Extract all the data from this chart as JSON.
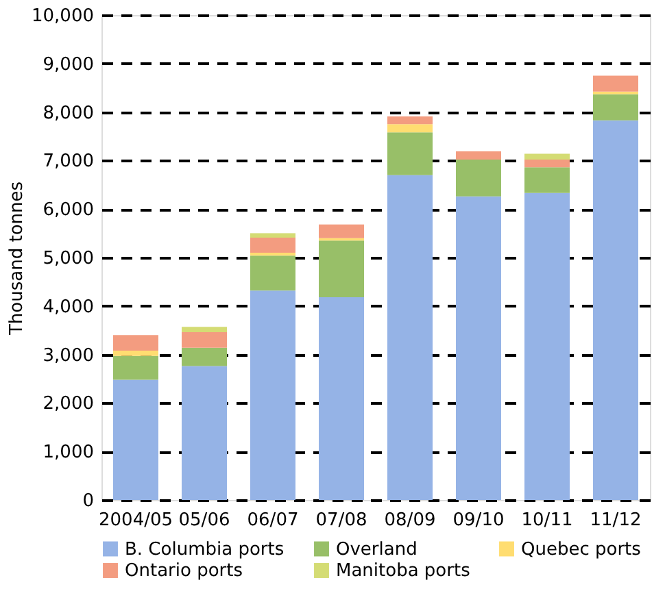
{
  "chart_data": {
    "type": "bar",
    "stacked": true,
    "ylabel": "Thousand tonnes",
    "categories": [
      "2004/05",
      "05/06",
      "06/07",
      "07/08",
      "08/09",
      "09/10",
      "10/11",
      "11/12"
    ],
    "series": [
      {
        "name": "B. Columbia ports",
        "color": "#95b3e6",
        "values": [
          2480,
          2760,
          4320,
          4180,
          6700,
          6260,
          6330,
          7830
        ]
      },
      {
        "name": "Overland",
        "color": "#98bf68",
        "values": [
          490,
          380,
          720,
          1170,
          880,
          760,
          530,
          540
        ]
      },
      {
        "name": "Quebec ports",
        "color": "#ffdd71",
        "values": [
          110,
          0,
          60,
          50,
          170,
          0,
          0,
          50
        ]
      },
      {
        "name": "Ontario ports",
        "color": "#f39c80",
        "values": [
          320,
          320,
          310,
          280,
          160,
          170,
          160,
          330
        ]
      },
      {
        "name": "Manitoba ports",
        "color": "#d4dc74",
        "values": [
          0,
          110,
          90,
          0,
          0,
          0,
          120,
          0
        ]
      }
    ],
    "ylim": [
      0,
      10000
    ],
    "yticks": [
      0,
      {
        "value": 1000,
        "label": "1,000"
      },
      {
        "value": 2000,
        "label": "2,000"
      },
      {
        "value": 3000,
        "label": "3,000"
      },
      {
        "value": 4000,
        "label": "4,000"
      },
      {
        "value": 5000,
        "label": "5,000"
      },
      {
        "value": 6000,
        "label": "6,000"
      },
      {
        "value": 7000,
        "label": "7,000"
      },
      {
        "value": 8000,
        "label": "8,000"
      },
      {
        "value": 9000,
        "label": "9,000"
      },
      {
        "value": 10000,
        "label": "10,000"
      }
    ],
    "grid": "y",
    "legend": "bottom"
  }
}
